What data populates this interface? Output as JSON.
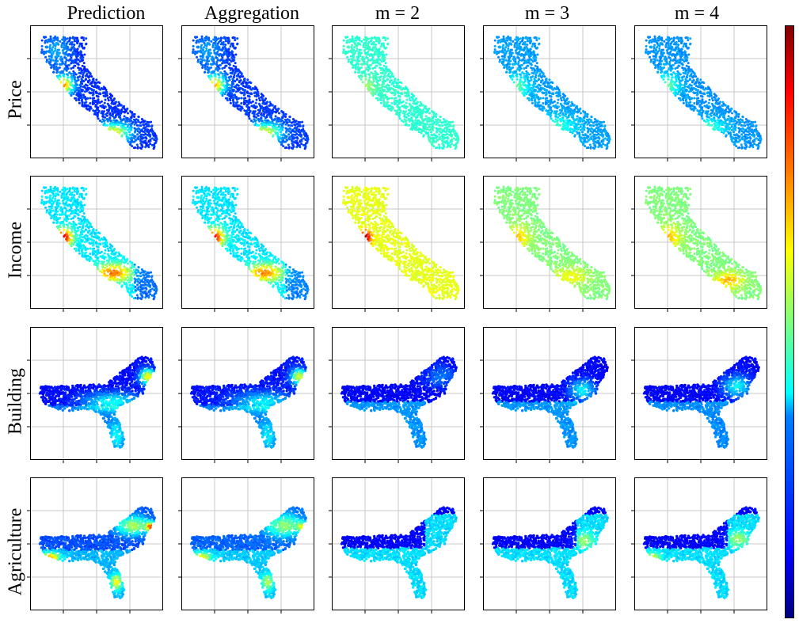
{
  "chart_data": {
    "type": "scatter",
    "columns": [
      "Prediction",
      "Aggregation",
      "m = 2",
      "m = 3",
      "m = 4"
    ],
    "rows": [
      "Price",
      "Income",
      "Building",
      "Agriculture"
    ],
    "colormap": "jet",
    "colormap_colors": [
      "#00007f",
      "#0000ff",
      "#007fff",
      "#00ffff",
      "#7fff7f",
      "#ffff00",
      "#ff7f00",
      "#ff0000",
      "#7f0000"
    ],
    "grid": true,
    "tick_labels": false,
    "colorbar": "right",
    "maps": {
      "Price": "california",
      "Income": "california",
      "Building": "southeast-us",
      "Agriculture": "southeast-us"
    }
  }
}
